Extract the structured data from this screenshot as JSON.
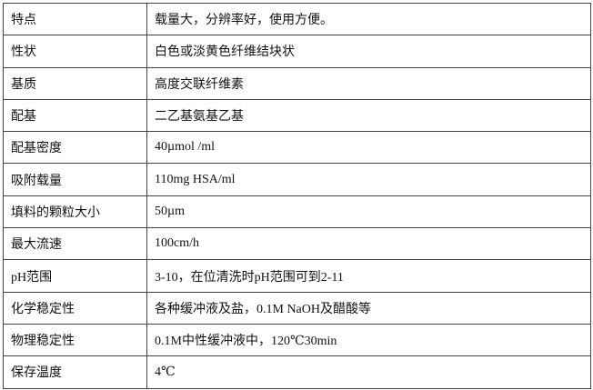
{
  "rows": [
    {
      "key": "特点",
      "value": "载量大，分辨率好，使用方便。"
    },
    {
      "key": "性状",
      "value": "白色或淡黄色纤维结块状"
    },
    {
      "key": "基质",
      "value": "高度交联纤维素"
    },
    {
      "key": "配基",
      "value": "二乙基氨基乙基"
    },
    {
      "key": "配基密度",
      "value": "40µmol /ml"
    },
    {
      "key": "吸附载量",
      "value": "110mg HSA/ml"
    },
    {
      "key": "填料的颗粒大小",
      "value": "50µm"
    },
    {
      "key": "最大流速",
      "value": "100cm/h"
    },
    {
      "key": "pH范围",
      "value": "3-10，在位清洗时pH范围可到2-11"
    },
    {
      "key": "化学稳定性",
      "value": "各种缓冲液及盐，0.1M NaOH及醋酸等"
    },
    {
      "key": "物理稳定性",
      "value": "0.1M中性缓冲液中，120℃30min"
    },
    {
      "key": "保存温度",
      "value": "4℃"
    }
  ]
}
